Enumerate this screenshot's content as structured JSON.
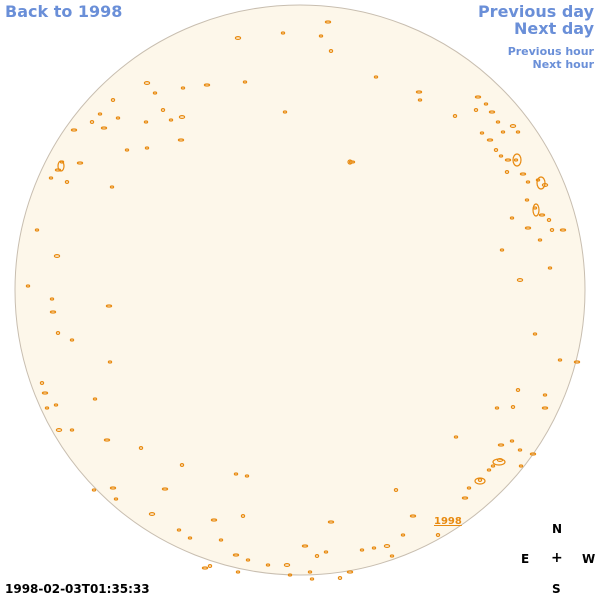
{
  "navigation": {
    "back_label": "Back to 1998",
    "previous_day_label": "Previous day",
    "next_day_label": "Next day",
    "previous_hour_label": "Previous hour",
    "next_hour_label": "Next hour"
  },
  "sun_disk": {
    "fill_color": "#fdf7ea",
    "edge_color": "#c8beb0",
    "contour_color": "#e88a10",
    "year_tag": "1998"
  },
  "compass": {
    "north": "N",
    "east": "E",
    "center": "+",
    "west": "W",
    "south": "S"
  },
  "timestamp": "1998-02-03T01:35:33"
}
